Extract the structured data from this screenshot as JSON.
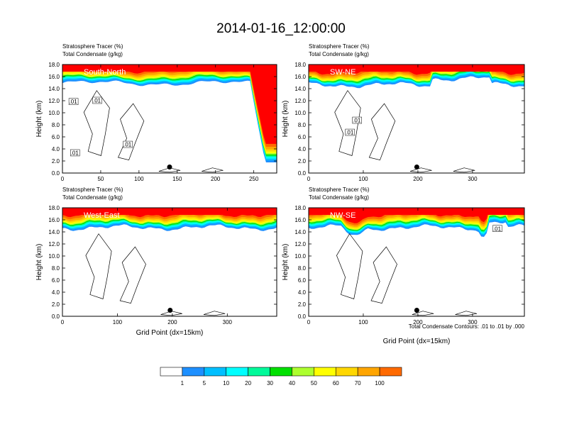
{
  "figure": {
    "title": "2014-01-16_12:00:00",
    "left_title_line1": "Stratosphere Tracer   (%)",
    "left_title_line2": "Total Condensate   (g/kg)",
    "xlabel": "Grid Point (dx=15km)",
    "ylabel": "Height (km)",
    "contour_note": "Total Condensate Contours: .01 to .01 by .000",
    "contour_label": ".01"
  },
  "colors": {
    "levels": [
      "#ffffff",
      "#1e90ff",
      "#00bfff",
      "#00ffff",
      "#00fa9a",
      "#00e000",
      "#adff2f",
      "#ffff00",
      "#ffd700",
      "#ffa500",
      "#ff6a00",
      "#ff0000"
    ],
    "labels": [
      "1",
      "5",
      "10",
      "20",
      "30",
      "40",
      "50",
      "60",
      "70",
      "100"
    ]
  },
  "chart_data": [
    {
      "type": "heatmap",
      "name": "South-North",
      "x_ticks": [
        0,
        50,
        100,
        150,
        200,
        250
      ],
      "xlim": [
        0,
        280
      ],
      "y_ticks": [
        "0.0",
        "2.0",
        "4.0",
        "6.0",
        "8.0",
        "10.0",
        "12.0",
        "14.0",
        "16.0",
        "18.0"
      ],
      "ylim": [
        0,
        18
      ],
      "tracer_base_km": 15.5,
      "marker": {
        "x": 140,
        "y": 1.0
      },
      "contour_labels": [
        {
          "x": 14,
          "y": 11.8
        },
        {
          "x": 45,
          "y": 12.0
        },
        {
          "x": 85,
          "y": 4.7
        },
        {
          "x": 16,
          "y": 3.3
        }
      ]
    },
    {
      "type": "heatmap",
      "name": "SW-NE",
      "x_ticks": [
        0,
        100,
        200,
        300
      ],
      "xlim": [
        0,
        395
      ],
      "y_ticks": [
        "0.0",
        "2.0",
        "4.0",
        "6.0",
        "8.0",
        "10.0",
        "12.0",
        "14.0",
        "16.0",
        "18.0"
      ],
      "ylim": [
        0,
        18
      ],
      "tracer_base_km": 15.2,
      "marker": {
        "x": 198,
        "y": 1.0
      },
      "contour_labels": [
        {
          "x": 88,
          "y": 8.7
        },
        {
          "x": 75,
          "y": 6.7
        }
      ]
    },
    {
      "type": "heatmap",
      "name": "West-East",
      "x_ticks": [
        0,
        100,
        200,
        300
      ],
      "xlim": [
        0,
        390
      ],
      "y_ticks": [
        "0.0",
        "2.0",
        "4.0",
        "6.0",
        "8.0",
        "10.0",
        "12.0",
        "14.0",
        "16.0",
        "18.0"
      ],
      "ylim": [
        0,
        18
      ],
      "tracer_base_km": 15.3,
      "marker": {
        "x": 196,
        "y": 1.0
      },
      "contour_labels": []
    },
    {
      "type": "heatmap",
      "name": "NW-SE",
      "x_ticks": [
        0,
        100,
        200,
        300
      ],
      "xlim": [
        0,
        395
      ],
      "y_ticks": [
        "0.0",
        "2.0",
        "4.0",
        "6.0",
        "8.0",
        "10.0",
        "12.0",
        "14.0",
        "16.0",
        "18.0"
      ],
      "ylim": [
        0,
        18
      ],
      "tracer_base_km": 15.3,
      "marker": {
        "x": 198,
        "y": 1.0
      },
      "contour_labels": [
        {
          "x": 345,
          "y": 14.5
        }
      ]
    }
  ]
}
